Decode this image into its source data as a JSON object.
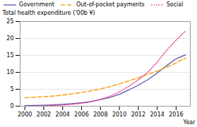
{
  "chart_data": {
    "type": "line",
    "x": [
      2000,
      2001,
      2002,
      2003,
      2004,
      2005,
      2006,
      2007,
      2008,
      2009,
      2010,
      2011,
      2012,
      2013,
      2014,
      2015,
      2016,
      2017
    ],
    "series": [
      {
        "name": "Government",
        "color": "#5555aa",
        "line_style": "solid",
        "values": [
          0.2,
          0.25,
          0.3,
          0.4,
          0.55,
          0.75,
          1.0,
          1.4,
          1.95,
          2.6,
          3.5,
          4.8,
          6.2,
          7.8,
          9.8,
          12.0,
          14.0,
          15.2
        ]
      },
      {
        "name": "Out-of-pocket payments",
        "color": "#f5a623",
        "line_style": "dashed",
        "values": [
          2.5,
          2.65,
          2.8,
          3.0,
          3.3,
          3.65,
          4.05,
          4.55,
          5.1,
          5.8,
          6.6,
          7.5,
          8.4,
          9.4,
          10.4,
          11.5,
          12.8,
          14.2
        ]
      },
      {
        "name": "Social",
        "color": "#e8368a",
        "line_style": "dotted",
        "values": [
          0.05,
          0.08,
          0.12,
          0.2,
          0.35,
          0.55,
          0.85,
          1.3,
          2.0,
          2.95,
          4.2,
          5.9,
          7.8,
          10.0,
          13.0,
          16.5,
          19.5,
          22.2
        ]
      }
    ],
    "xlabel": "Year",
    "ylabel": "Total health expenditure ('00b ¥)",
    "xlim": [
      1999.5,
      2017.5
    ],
    "xticks": [
      2000,
      2002,
      2004,
      2006,
      2008,
      2010,
      2012,
      2014,
      2016
    ],
    "ylim": [
      0,
      25
    ],
    "yticks": [
      0,
      5,
      10,
      15,
      20,
      25
    ],
    "grid": true,
    "legend": "upper left"
  }
}
